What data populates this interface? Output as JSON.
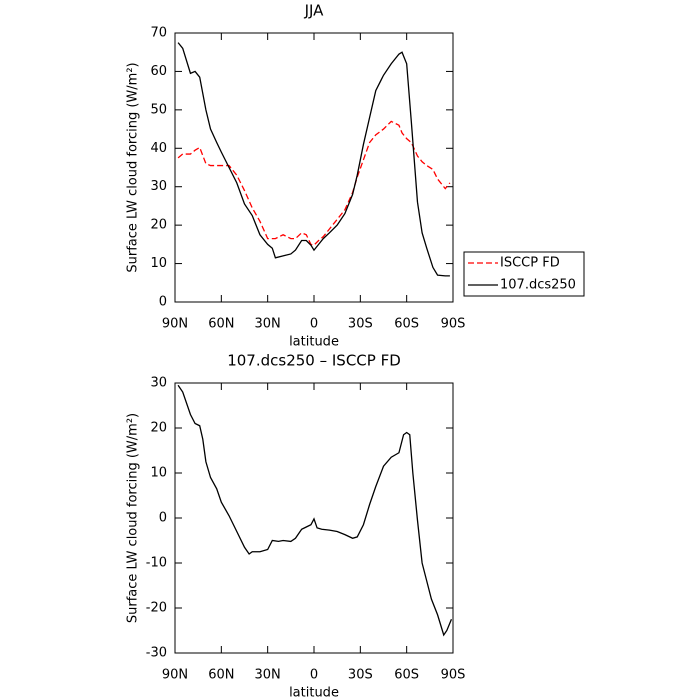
{
  "chart_data": [
    {
      "type": "line",
      "title": "JJA",
      "xlabel": "latitude",
      "ylabel": "Surface LW cloud forcing (W/m²)",
      "x": [
        88,
        85,
        80,
        77,
        74,
        70,
        67,
        63,
        60,
        55,
        50,
        45,
        40,
        35,
        30,
        27,
        25,
        20,
        15,
        12,
        8,
        5,
        2,
        0,
        -3,
        -6,
        -10,
        -15,
        -20,
        -25,
        -28,
        -32,
        -36,
        -40,
        -45,
        -50,
        -55,
        -57,
        -60,
        -63,
        -67,
        -70,
        -73,
        -77,
        -80,
        -85,
        -88
      ],
      "series": [
        {
          "name": "ISCCP FD",
          "color": "#ff0000",
          "line_style": "dashed",
          "values": [
            37.5,
            38.5,
            38.5,
            39.5,
            40.2,
            36,
            35.5,
            35.5,
            35.5,
            35.5,
            33,
            29,
            24.5,
            21,
            16.5,
            16.5,
            16.5,
            17.5,
            16.5,
            16.5,
            18,
            17.5,
            15,
            14.8,
            16,
            17,
            19,
            21.5,
            24,
            28.5,
            32.5,
            37,
            41.5,
            43.5,
            45,
            47,
            46,
            44,
            42.5,
            41.5,
            38,
            36.5,
            35.5,
            34.5,
            32,
            29.5,
            31
          ]
        },
        {
          "name": "107.dcs250",
          "color": "#000000",
          "line_style": "solid",
          "values": [
            67.5,
            66,
            59.5,
            60,
            58.5,
            50,
            45,
            41.5,
            39,
            35,
            31,
            25.5,
            22.5,
            17.5,
            15,
            14,
            11.5,
            12,
            12.5,
            13.5,
            16,
            16,
            14.8,
            13.5,
            15,
            16.5,
            18,
            20,
            23,
            28,
            33,
            41,
            48,
            55,
            59,
            62,
            64.5,
            65,
            62,
            47,
            26,
            18,
            14,
            9,
            7,
            6.8,
            6.8
          ]
        }
      ],
      "xlim": [
        90,
        -90
      ],
      "xticks": [
        {
          "value": 90,
          "label": "90N"
        },
        {
          "value": 60,
          "label": "60N"
        },
        {
          "value": 30,
          "label": "30N"
        },
        0,
        {
          "value": -30,
          "label": "30S"
        },
        {
          "value": -60,
          "label": "60S"
        },
        {
          "value": -90,
          "label": "90S"
        }
      ],
      "ylim": [
        0,
        70
      ],
      "yticks": [
        0,
        10,
        20,
        30,
        40,
        50,
        60,
        70
      ],
      "grid": false,
      "legend": "right"
    },
    {
      "type": "line",
      "title": "107.dcs250 – ISCCP FD",
      "xlabel": "latitude",
      "ylabel": "Surface LW cloud forcing (W/m²)",
      "x": [
        88,
        85,
        80,
        77,
        74,
        72,
        70,
        67,
        63,
        60,
        55,
        50,
        45,
        42,
        40,
        35,
        30,
        27,
        23,
        20,
        15,
        12,
        8,
        5,
        2,
        0,
        -2,
        -5,
        -10,
        -15,
        -20,
        -25,
        -28,
        -32,
        -36,
        -40,
        -45,
        -50,
        -55,
        -58,
        -60,
        -62,
        -64,
        -67,
        -70,
        -73,
        -76,
        -80,
        -84,
        -86,
        -89
      ],
      "series": [
        {
          "name": null,
          "color": "#000000",
          "line_style": "solid",
          "values": [
            29.5,
            28,
            23,
            21,
            20.5,
            17.5,
            12.5,
            9,
            6.5,
            3.5,
            0.5,
            -3,
            -6.5,
            -8,
            -7.5,
            -7.5,
            -7,
            -5,
            -5.2,
            -5,
            -5.2,
            -4.5,
            -2.5,
            -2,
            -1.5,
            -0.2,
            -2.2,
            -2.5,
            -2.7,
            -3,
            -3.7,
            -4.5,
            -4.2,
            -1.5,
            3,
            7,
            11.5,
            13.5,
            14.5,
            18.5,
            19,
            18.5,
            10,
            -0.5,
            -10,
            -14,
            -18,
            -21.5,
            -26,
            -25,
            -22.5
          ]
        }
      ],
      "xlim": [
        90,
        -90
      ],
      "xticks": [
        {
          "value": 90,
          "label": "90N"
        },
        {
          "value": 60,
          "label": "60N"
        },
        {
          "value": 30,
          "label": "30N"
        },
        0,
        {
          "value": -30,
          "label": "30S"
        },
        {
          "value": -60,
          "label": "60S"
        },
        {
          "value": -90,
          "label": "90S"
        }
      ],
      "ylim": [
        -30,
        30
      ],
      "yticks": [
        -30,
        -20,
        -10,
        0,
        10,
        20,
        30
      ],
      "grid": false,
      "legend": null
    }
  ]
}
